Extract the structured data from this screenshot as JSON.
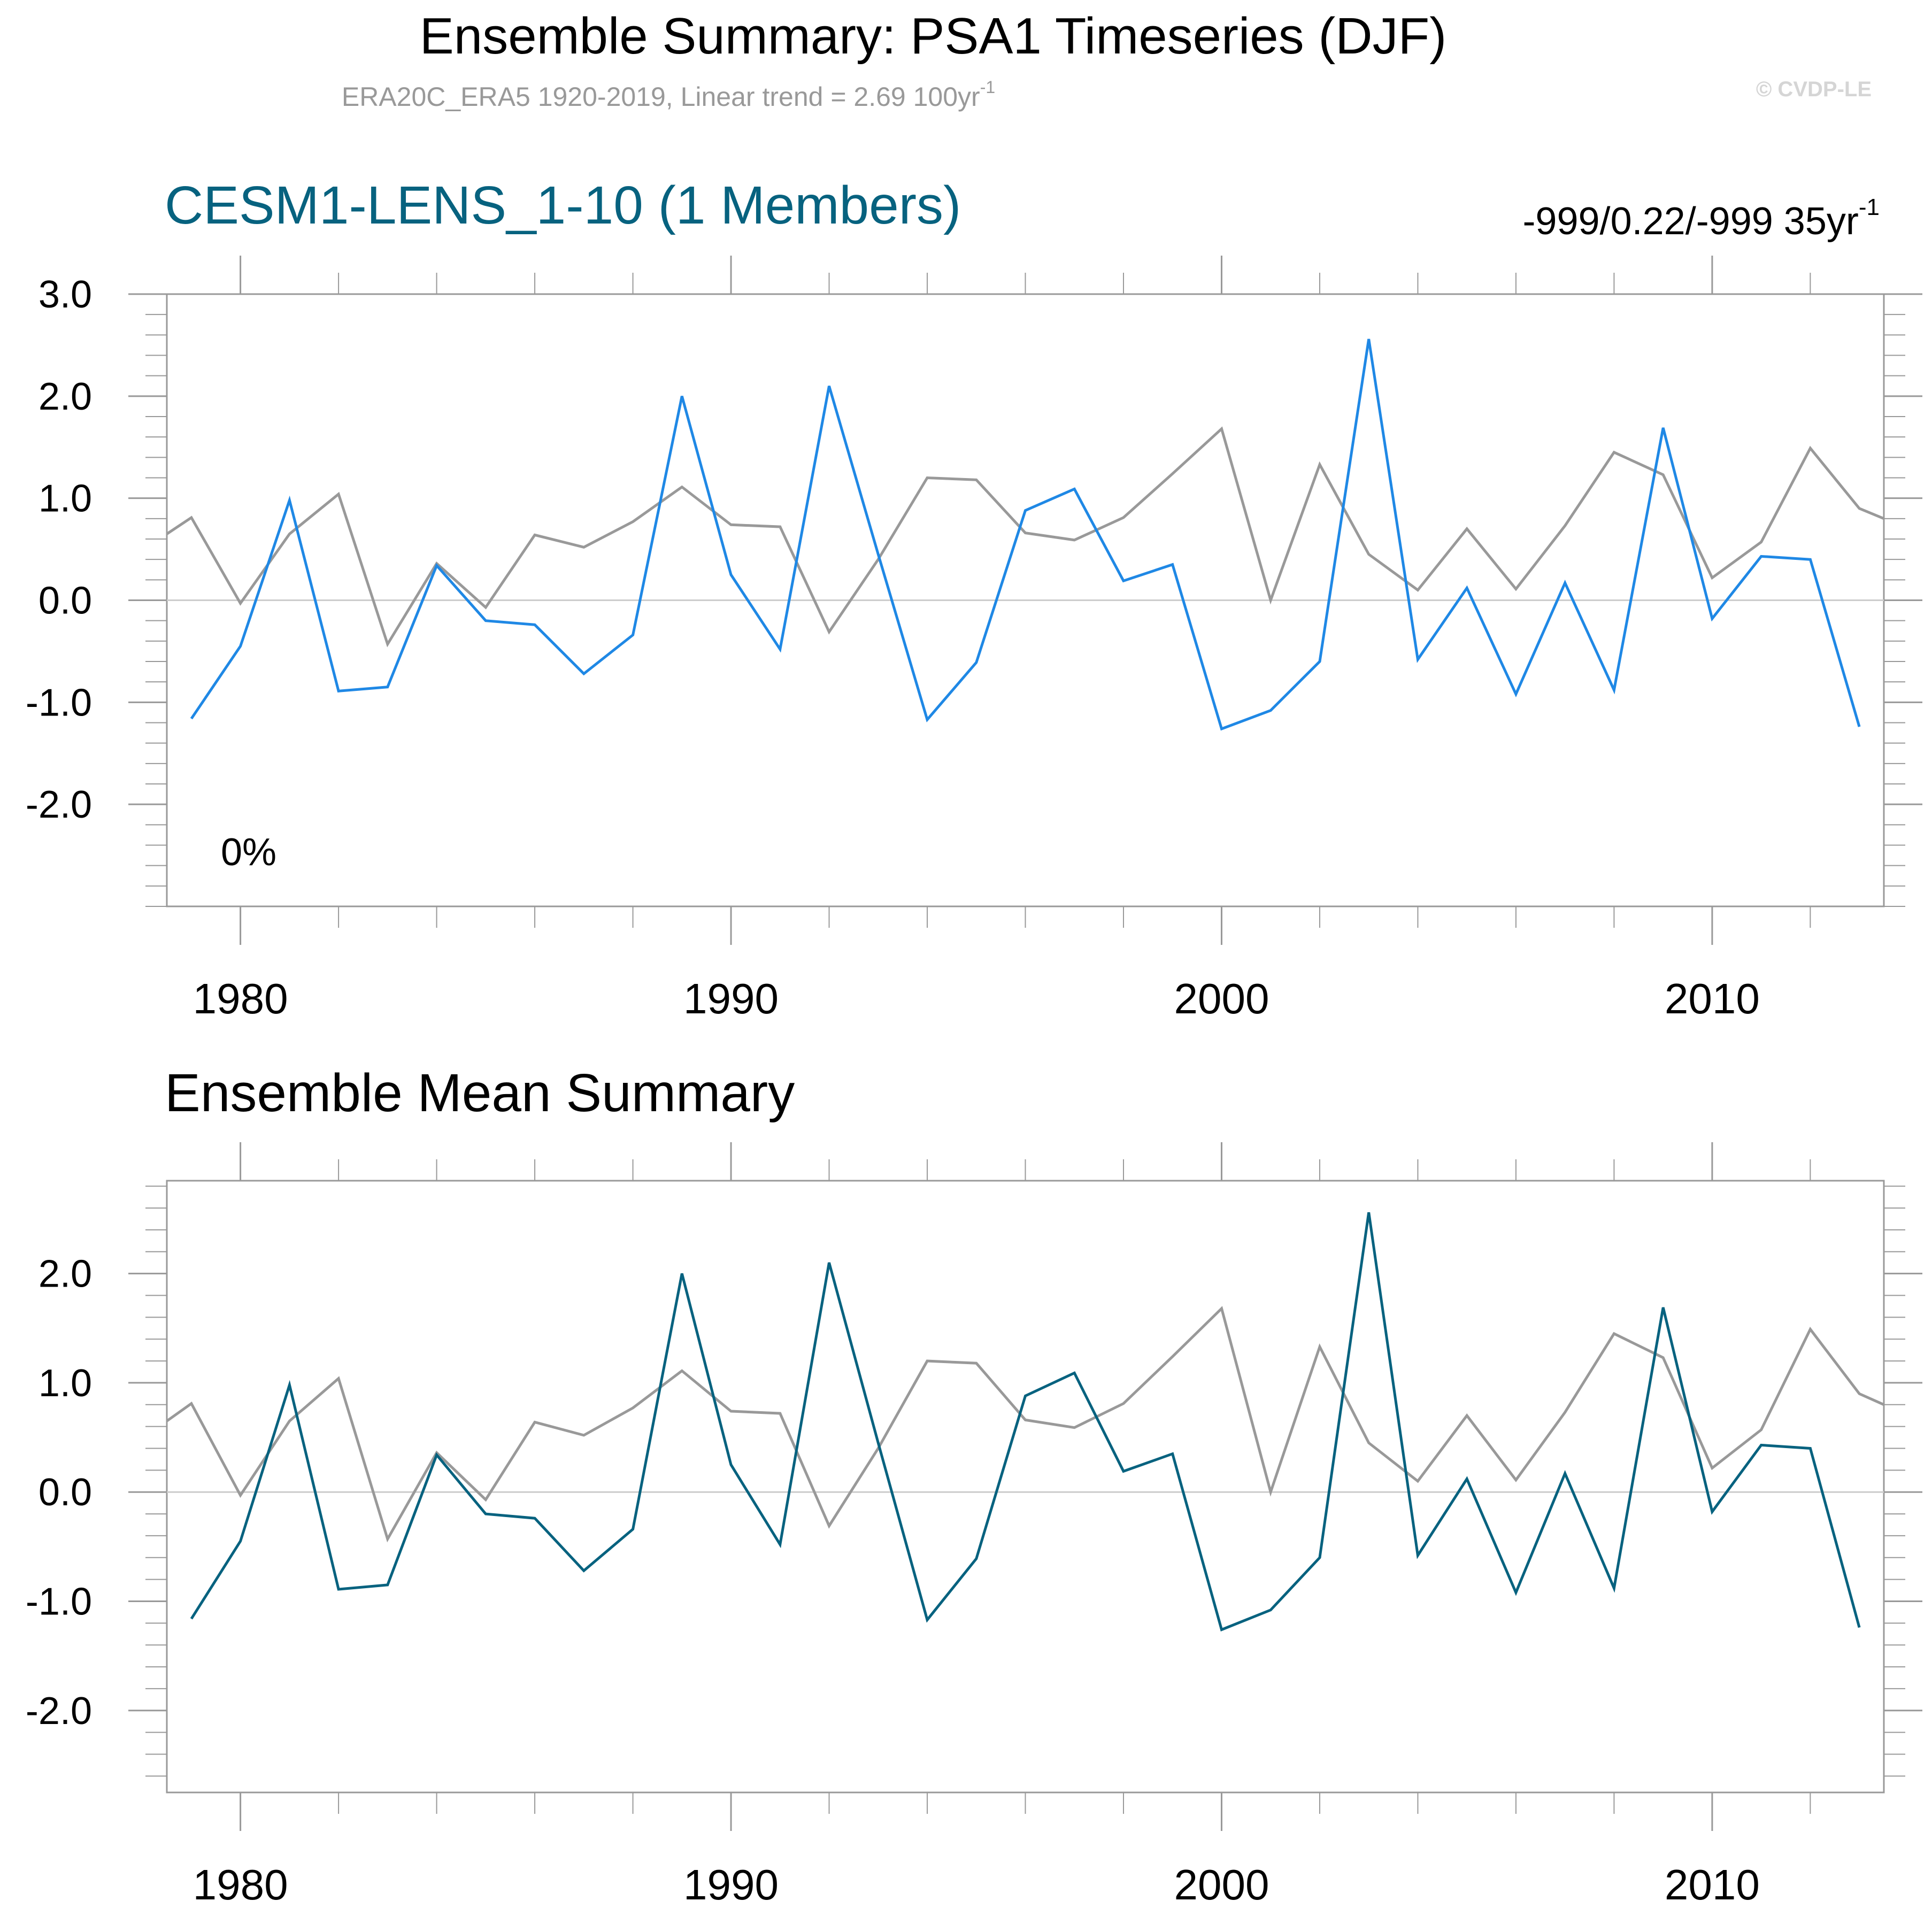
{
  "header": {
    "title": "Ensemble Summary: PSA1 Timeseries (DJF)",
    "subtitle": "ERA20C_ERA5 1920-2019, Linear trend = 2.69 100yr",
    "subtitle_sup": "-1",
    "watermark": "© CVDP-LE"
  },
  "colors": {
    "obs": "#999999",
    "member": "#1f88e5",
    "mean": "#07627f",
    "title_model": "#07627f",
    "axis": "#999999",
    "zero": "#cccccc",
    "subtitle": "#999999",
    "watermark": "#d5d5d5"
  },
  "chart_data": [
    {
      "type": "line",
      "id": "panel1",
      "title": "CESM1-LENS_1-10 (1 Members)",
      "right_label": "-999/0.22/-999 35yr",
      "right_label_sup": "-1",
      "annotation": "0%",
      "xlim": [
        1978.5,
        2013.5
      ],
      "ylim": [
        -3,
        3
      ],
      "xticks": [
        1980,
        1990,
        2000,
        2010
      ],
      "xtick_labels": [
        "1980",
        "1990",
        "2000",
        "2010"
      ],
      "yticks": [
        3,
        2,
        1,
        0,
        -1,
        -2
      ],
      "ytick_labels": [
        "3.0",
        "2.0",
        "1.0",
        "0.0",
        "-1.0",
        "-2.0"
      ],
      "series": [
        {
          "name": "ERA20C_ERA5",
          "color_key": "obs",
          "x": [
            1978.5,
            1979,
            1980,
            1981,
            1982,
            1983,
            1984,
            1985,
            1986,
            1987,
            1988,
            1989,
            1990,
            1991,
            1992,
            1993,
            1994,
            1995,
            1996,
            1997,
            1998,
            1999,
            2000,
            2001,
            2002,
            2003,
            2004,
            2005,
            2006,
            2007,
            2008,
            2009,
            2010,
            2011,
            2012,
            2013,
            2013.5
          ],
          "y": [
            0.65,
            0.81,
            -0.03,
            0.65,
            1.04,
            -0.43,
            0.36,
            -0.07,
            0.64,
            0.52,
            0.77,
            1.11,
            0.74,
            0.72,
            -0.31,
            0.4,
            1.2,
            1.18,
            0.66,
            0.59,
            0.81,
            1.24,
            1.68,
            0.0,
            1.33,
            0.45,
            0.1,
            0.7,
            0.11,
            0.73,
            1.45,
            1.23,
            0.22,
            0.57,
            1.49,
            0.9,
            0.8
          ]
        },
        {
          "name": "CESM1-LENS_1-10",
          "color_key": "member",
          "x": [
            1979,
            1980,
            1981,
            1982,
            1983,
            1984,
            1985,
            1986,
            1987,
            1988,
            1989,
            1990,
            1991,
            1992,
            1993,
            1994,
            1995,
            1996,
            1997,
            1998,
            1999,
            2000,
            2001,
            2002,
            2003,
            2004,
            2005,
            2006,
            2007,
            2008,
            2009,
            2010,
            2011,
            2012,
            2013
          ],
          "y": [
            -1.16,
            -0.45,
            0.98,
            -0.89,
            -0.85,
            0.34,
            -0.2,
            -0.24,
            -0.72,
            -0.34,
            2.0,
            0.25,
            -0.48,
            2.1,
            0.45,
            -1.17,
            -0.61,
            0.88,
            1.09,
            0.19,
            0.35,
            -1.26,
            -1.08,
            -0.6,
            2.56,
            -0.58,
            0.12,
            -0.92,
            0.17,
            -0.88,
            1.69,
            -0.18,
            0.43,
            0.4,
            -1.24
          ]
        }
      ]
    },
    {
      "type": "line",
      "id": "panel2",
      "title": "Ensemble Mean Summary",
      "xlim": [
        1978.5,
        2013.5
      ],
      "ylim": [
        -2.75,
        2.85
      ],
      "xticks": [
        1980,
        1990,
        2000,
        2010
      ],
      "xtick_labels": [
        "1980",
        "1990",
        "2000",
        "2010"
      ],
      "yticks": [
        2,
        1,
        0,
        -1,
        -2
      ],
      "ytick_labels": [
        "2.0",
        "1.0",
        "0.0",
        "-1.0",
        "-2.0"
      ],
      "series": [
        {
          "name": "ERA20C_ERA5",
          "color_key": "obs",
          "x": [
            1978.5,
            1979,
            1980,
            1981,
            1982,
            1983,
            1984,
            1985,
            1986,
            1987,
            1988,
            1989,
            1990,
            1991,
            1992,
            1993,
            1994,
            1995,
            1996,
            1997,
            1998,
            1999,
            2000,
            2001,
            2002,
            2003,
            2004,
            2005,
            2006,
            2007,
            2008,
            2009,
            2010,
            2011,
            2012,
            2013,
            2013.5
          ],
          "y": [
            0.65,
            0.81,
            -0.03,
            0.65,
            1.04,
            -0.43,
            0.36,
            -0.07,
            0.64,
            0.52,
            0.77,
            1.11,
            0.74,
            0.72,
            -0.31,
            0.4,
            1.2,
            1.18,
            0.66,
            0.59,
            0.81,
            1.24,
            1.68,
            0.0,
            1.33,
            0.45,
            0.1,
            0.7,
            0.11,
            0.73,
            1.45,
            1.23,
            0.22,
            0.57,
            1.49,
            0.9,
            0.8
          ]
        },
        {
          "name": "Ensemble Mean",
          "color_key": "mean",
          "x": [
            1979,
            1980,
            1981,
            1982,
            1983,
            1984,
            1985,
            1986,
            1987,
            1988,
            1989,
            1990,
            1991,
            1992,
            1993,
            1994,
            1995,
            1996,
            1997,
            1998,
            1999,
            2000,
            2001,
            2002,
            2003,
            2004,
            2005,
            2006,
            2007,
            2008,
            2009,
            2010,
            2011,
            2012,
            2013
          ],
          "y": [
            -1.16,
            -0.45,
            0.98,
            -0.89,
            -0.85,
            0.34,
            -0.2,
            -0.24,
            -0.72,
            -0.34,
            2.0,
            0.25,
            -0.48,
            2.1,
            0.45,
            -1.17,
            -0.61,
            0.88,
            1.09,
            0.19,
            0.35,
            -1.26,
            -1.08,
            -0.6,
            2.56,
            -0.58,
            0.12,
            -0.92,
            0.17,
            -0.88,
            1.69,
            -0.18,
            0.43,
            0.4,
            -1.24
          ]
        }
      ]
    }
  ]
}
